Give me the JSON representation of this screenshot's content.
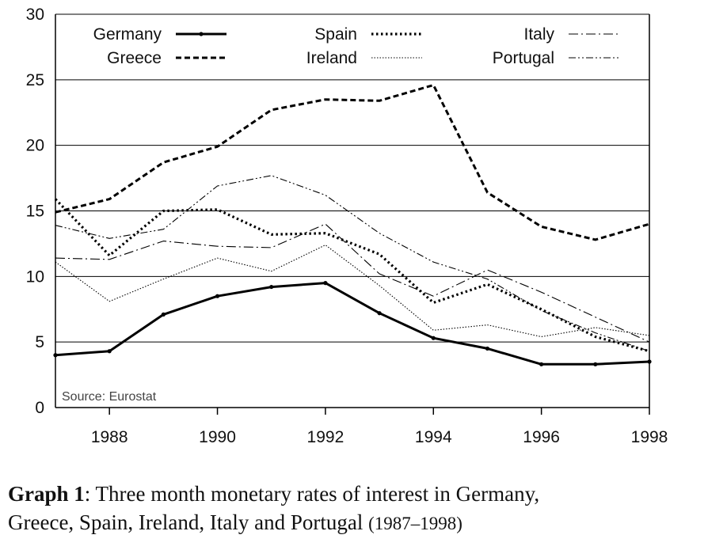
{
  "chart_data": {
    "type": "line",
    "x": [
      1987,
      1988,
      1989,
      1990,
      1991,
      1992,
      1993,
      1994,
      1995,
      1996,
      1997,
      1998
    ],
    "ylim": [
      0,
      30
    ],
    "yticks": [
      0,
      5,
      10,
      15,
      20,
      25,
      30
    ],
    "xlim": [
      1987,
      1998
    ],
    "xticks": [
      1988,
      1990,
      1992,
      1994,
      1996,
      1998
    ],
    "grid": "horizontal",
    "legend_position": "top",
    "source_note": "Source: Eurostat",
    "series": [
      {
        "name": "Germany",
        "style": "solid-thick",
        "values": [
          4.0,
          4.3,
          7.1,
          8.5,
          9.2,
          9.5,
          7.2,
          5.3,
          4.5,
          3.3,
          3.3,
          3.5
        ]
      },
      {
        "name": "Greece",
        "style": "dashed-thick",
        "values": [
          14.9,
          15.9,
          18.7,
          19.9,
          22.7,
          23.5,
          23.4,
          24.6,
          16.4,
          13.8,
          12.8,
          14.0
        ]
      },
      {
        "name": "Spain",
        "style": "dotted-thick",
        "values": [
          15.9,
          11.6,
          15.0,
          15.1,
          13.2,
          13.3,
          11.7,
          8.0,
          9.4,
          7.5,
          5.4,
          4.3
        ]
      },
      {
        "name": "Ireland",
        "style": "dotted-thin",
        "values": [
          11.1,
          8.1,
          9.8,
          11.4,
          10.4,
          12.4,
          9.3,
          5.9,
          6.3,
          5.4,
          6.1,
          5.5
        ]
      },
      {
        "name": "Italy",
        "style": "dashdot-thin",
        "values": [
          11.4,
          11.3,
          12.7,
          12.3,
          12.2,
          14.0,
          10.2,
          8.5,
          10.5,
          8.8,
          6.9,
          5.0
        ]
      },
      {
        "name": "Portugal",
        "style": "dashdotdot-thin",
        "values": [
          13.9,
          12.9,
          13.6,
          16.9,
          17.7,
          16.2,
          13.3,
          11.1,
          9.8,
          7.4,
          5.7,
          4.3
        ]
      }
    ]
  },
  "caption": {
    "label": "Graph 1",
    "text": ":  Three month monetary rates of interest in Germany,",
    "line2": "Greece, Spain, Ireland, Italy and Portugal",
    "years": "(1987–1998)"
  }
}
